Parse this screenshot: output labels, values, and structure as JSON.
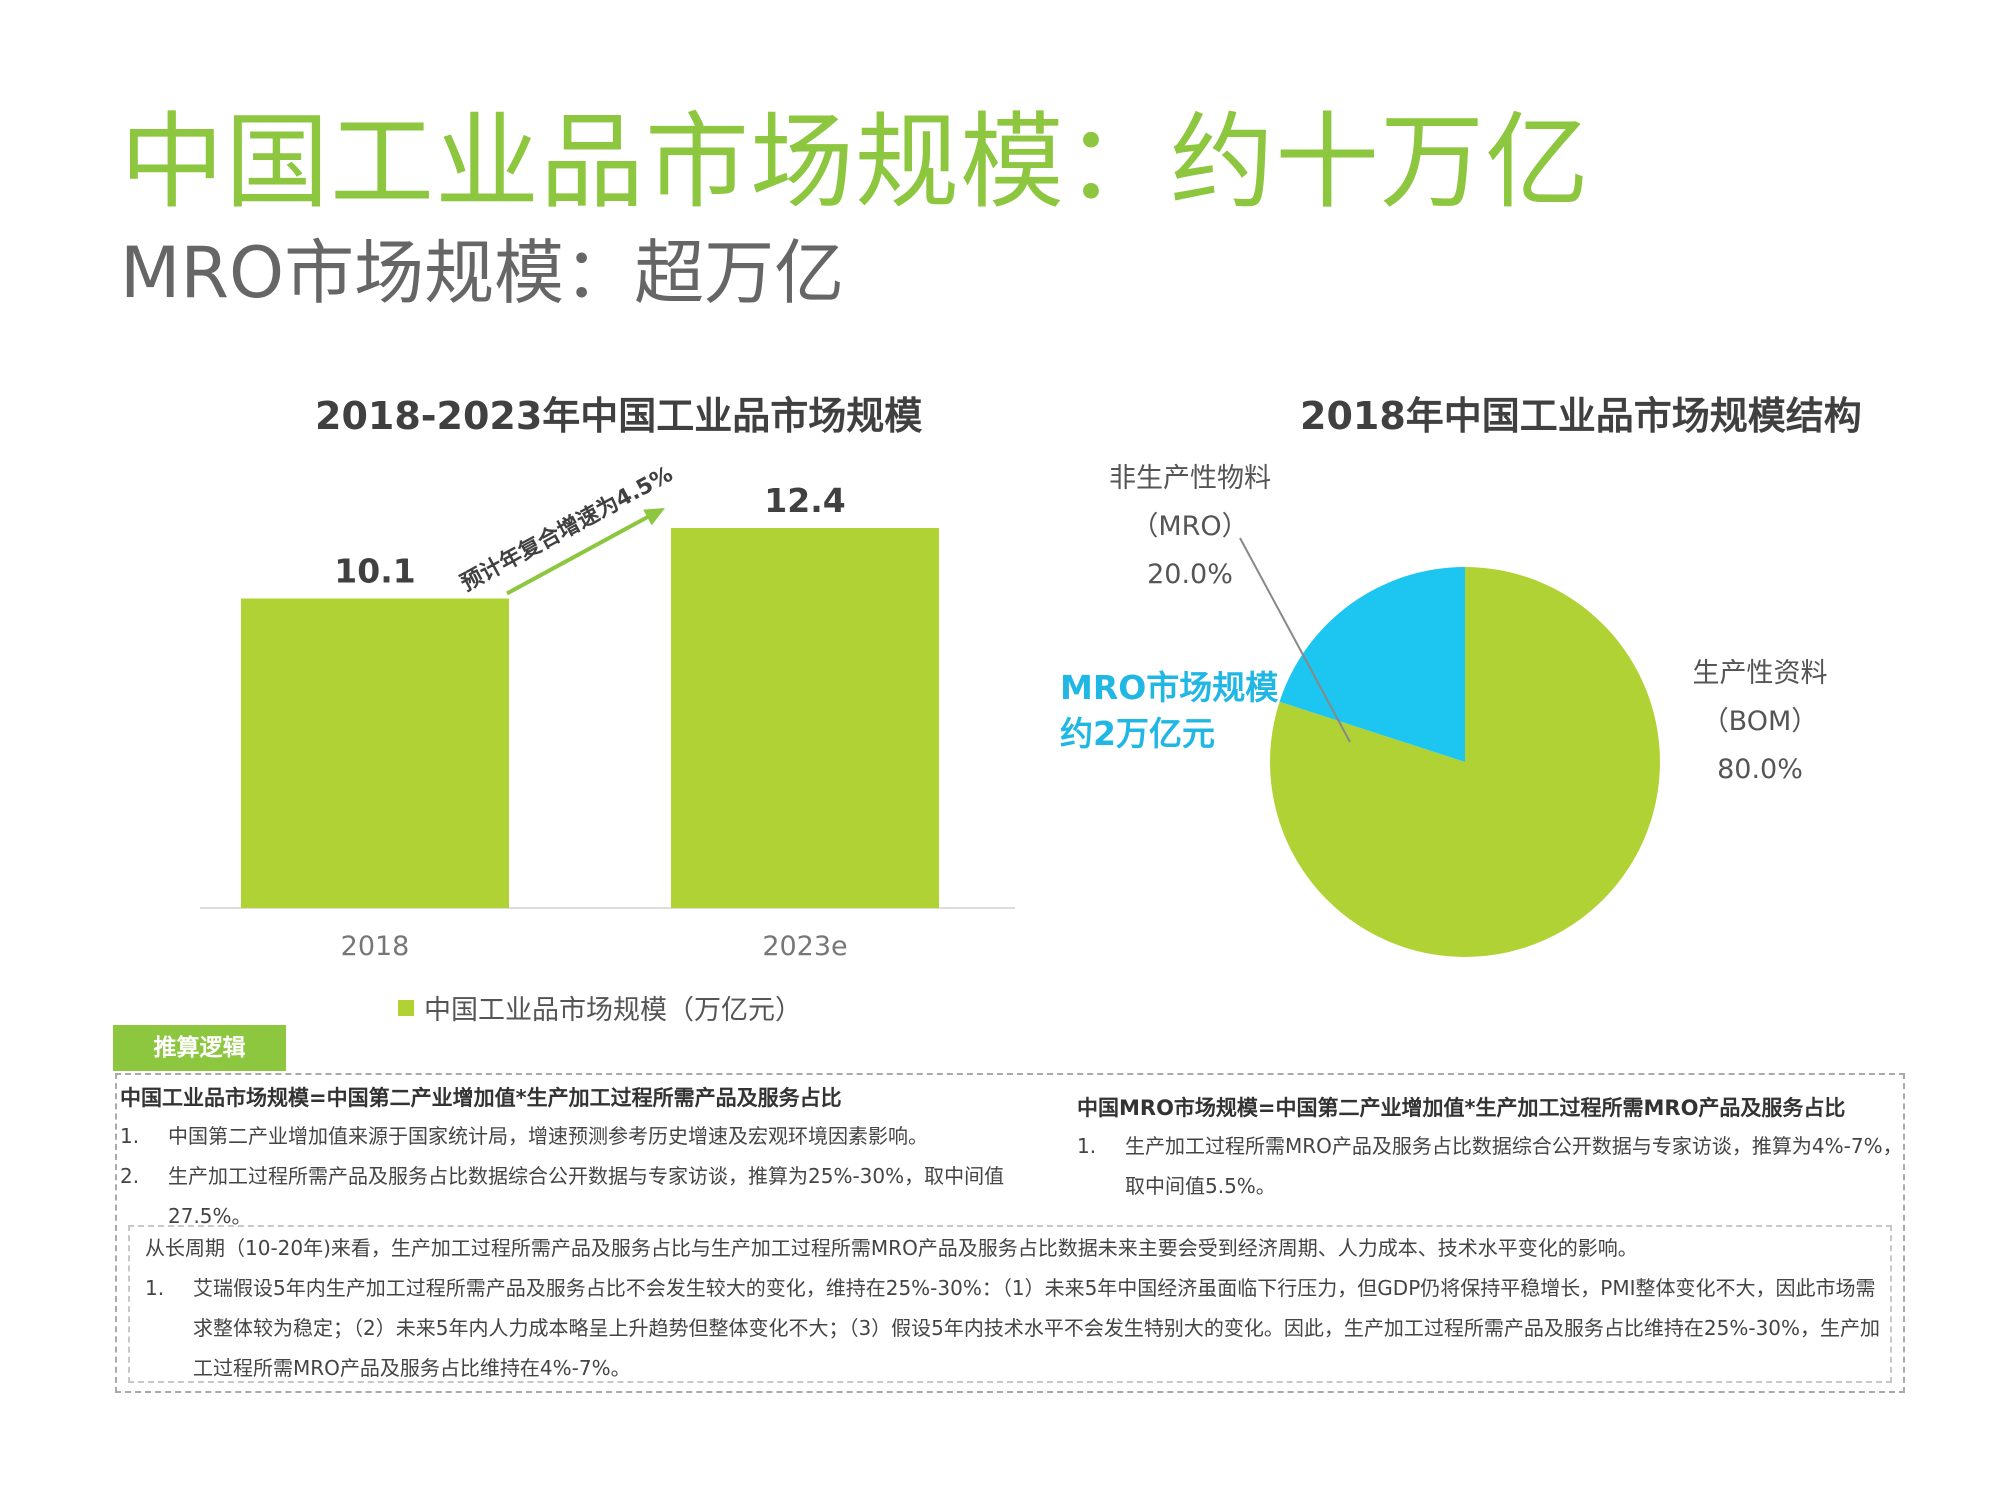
{
  "header": {
    "title": "中国工业品市场规模：约十万亿",
    "subtitle": "MRO市场规模：超万亿"
  },
  "chart_data": [
    {
      "type": "bar",
      "title": "2018-2023年中国工业品市场规模",
      "categories": [
        "2018",
        "2023e"
      ],
      "series": [
        {
          "name": "中国工业品市场规模（万亿元）",
          "values": [
            10.1,
            12.4
          ]
        }
      ],
      "data_labels": [
        "10.1",
        "12.4"
      ],
      "annotation": "预计年复合增速为4.5%",
      "legend_position": "bottom",
      "grid": false,
      "colors": {
        "bar": "#b1d235",
        "arrow": "#8dc63f"
      }
    },
    {
      "type": "pie",
      "title": "2018年中国工业品市场规模结构",
      "slices": [
        {
          "label": [
            "生产性资料",
            "（BOM）",
            "80.0%"
          ],
          "value": 80.0,
          "color": "#b1d235"
        },
        {
          "label": [
            "非生产性物料",
            "（MRO）",
            "20.0%"
          ],
          "value": 20.0,
          "color": "#1dc6f0"
        }
      ],
      "callout": [
        "MRO市场规模",
        "约2万亿元"
      ],
      "callout_color": "#21b7e5"
    }
  ],
  "logic": {
    "tag": "推算逻辑",
    "left_formula": "中国工业品市场规模=中国第二产业增加值*生产加工过程所需产品及服务占比",
    "left_items": [
      {
        "num": "1.",
        "text": "中国第二产业增加值来源于国家统计局，增速预测参考历史增速及宏观环境因素影响。"
      },
      {
        "num": "2.",
        "text": "生产加工过程所需产品及服务占比数据综合公开数据与专家访谈，推算为25%-30%，取中间值27.5%。"
      }
    ],
    "right_formula": "中国MRO市场规模=中国第二产业增加值*生产加工过程所需MRO产品及服务占比",
    "right_items": [
      {
        "num": "1.",
        "text": "生产加工过程所需MRO产品及服务占比数据综合公开数据与专家访谈，推算为4%-7%，取中间值5.5%。"
      }
    ],
    "note": "从长周期（10-20年)来看，生产加工过程所需产品及服务占比与生产加工过程所需MRO产品及服务占比数据未来主要会受到经济周期、人力成本、技术水平变化的影响。",
    "note_items": [
      {
        "num": "1.",
        "text": "艾瑞假设5年内生产加工过程所需产品及服务占比不会发生较大的变化，维持在25%-30%：（1）未来5年中国经济虽面临下行压力，但GDP仍将保持平稳增长，PMI整体变化不大，因此市场需求整体较为稳定；（2）未来5年内人力成本略呈上升趋势但整体变化不大；（3）假设5年内技术水平不会发生特别大的变化。因此，生产加工过程所需产品及服务占比维持在25%-30%，生产加工过程所需MRO产品及服务占比维持在4%-7%。"
      }
    ]
  }
}
